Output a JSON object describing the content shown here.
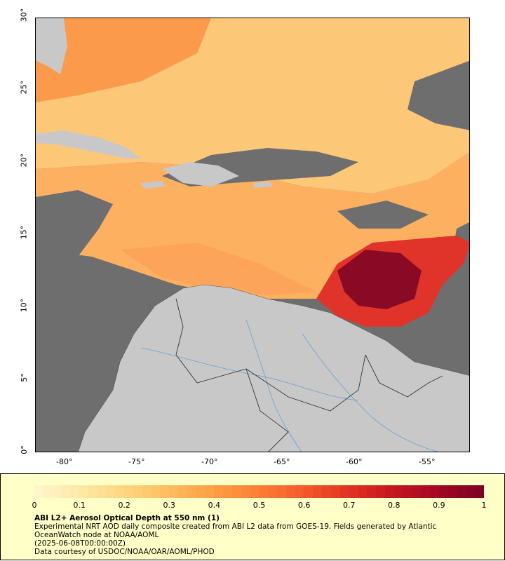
{
  "map": {
    "x_axis": {
      "range": [
        -82,
        -52
      ],
      "ticks": [
        -80,
        -75,
        -70,
        -65,
        -60,
        -55
      ],
      "tick_labels": [
        "-80°",
        "-75°",
        "-70°",
        "-65°",
        "-60°",
        "-55°"
      ]
    },
    "y_axis": {
      "range": [
        0,
        30
      ],
      "ticks": [
        0,
        5,
        10,
        15,
        20,
        25,
        30
      ],
      "tick_labels": [
        "0°",
        "5°",
        "10°",
        "15°",
        "20°",
        "25°",
        "30°"
      ]
    },
    "colors": {
      "land": "#c8c8c8",
      "no_data": "#6e6e6e",
      "rivers": "#6a9fd4",
      "borders": "#444444"
    }
  },
  "legend": {
    "colorbar_min": 0,
    "colorbar_max": 1,
    "tick_labels": [
      "0",
      "0.1",
      "0.2",
      "0.3",
      "0.4",
      "0.5",
      "0.6",
      "0.7",
      "0.8",
      "0.9",
      "1"
    ],
    "colors": [
      "#fff5c8",
      "#ffe7a6",
      "#ffd47e",
      "#fdbb5c",
      "#fc9e44",
      "#fb7e35",
      "#f45a2a",
      "#e23422",
      "#c71520",
      "#a50823",
      "#7e0226"
    ],
    "title": "ABI L2+ Aerosol Optical Depth at 550 nm (1)",
    "line1": "Experimental NRT AOD daily composite created from ABI L2 data from GOES-19. Fields generated by Atlantic",
    "line2": "OceanWatch node at NOAA/AOML",
    "line3": "(2025-06-08T00:00:00Z)",
    "line4": "Data courtesy of USDOC/NOAA/OAR/AOML/PHOD"
  }
}
